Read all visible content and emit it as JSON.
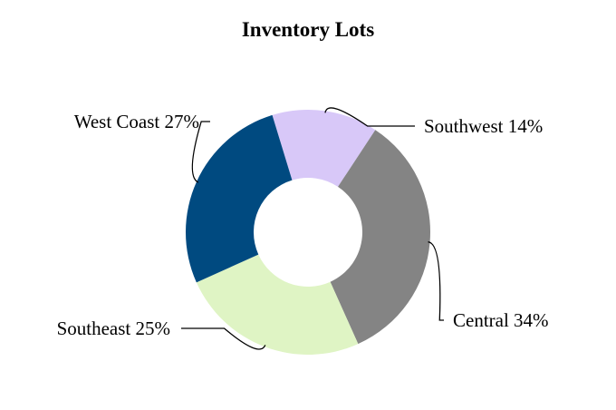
{
  "chart_data": {
    "type": "pie",
    "title": "Inventory Lots",
    "donut": true,
    "legend": "none",
    "slices": [
      {
        "label": "Southwest",
        "value": 14,
        "display": "Southwest 14%",
        "color": "#d8c8f8"
      },
      {
        "label": "Central",
        "value": 34,
        "display": "Central 34%",
        "color": "#848484"
      },
      {
        "label": "Southeast",
        "value": 25,
        "display": "Southeast 25%",
        "color": "#dff4c4"
      },
      {
        "label": "West Coast",
        "value": 27,
        "display": "West Coast 27%",
        "color": "#004a80"
      }
    ]
  }
}
